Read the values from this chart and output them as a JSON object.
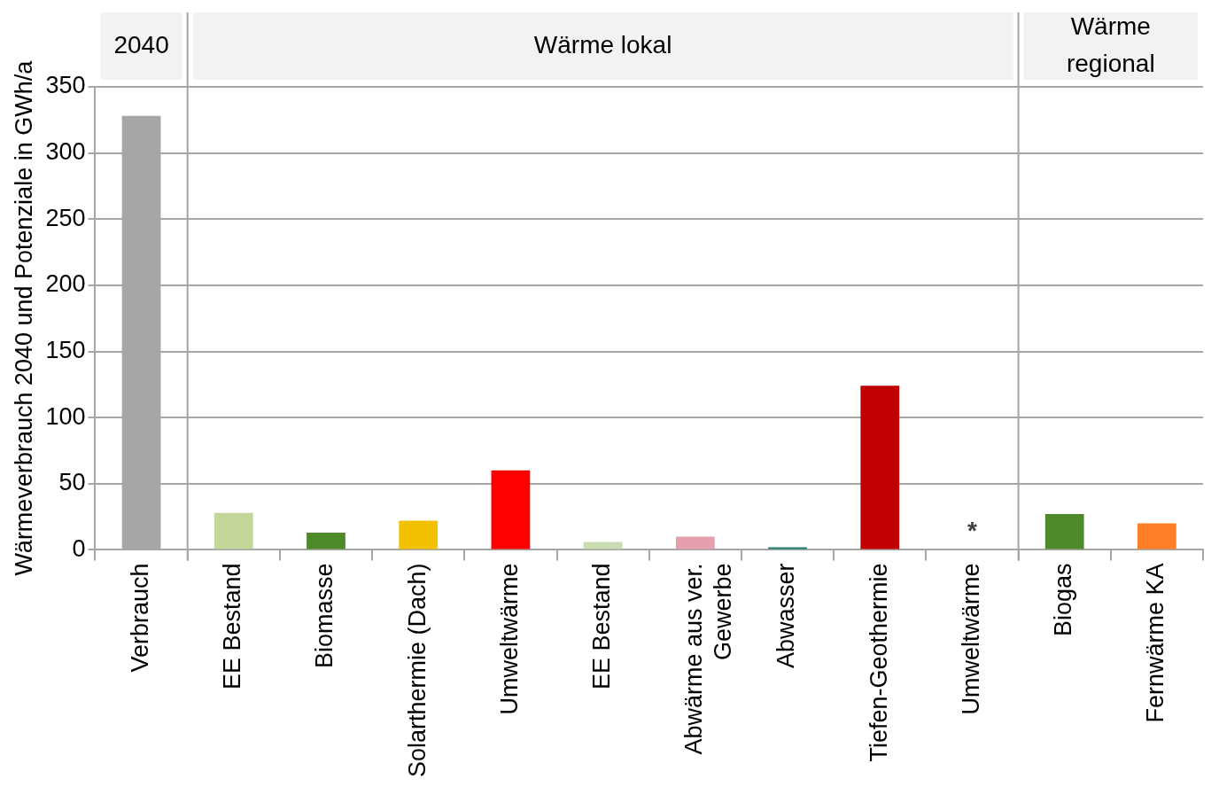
{
  "chart_data": {
    "type": "bar",
    "ylabel": "Wärmeverbrauch 2040 und Potenziale in GWh/a",
    "categories": [
      "Verbrauch",
      "EE Bestand",
      "Biomasse",
      "Solarthermie (Dach)",
      "Umweltwärme",
      "EE Bestand",
      "Abwärme aus ver. Gewerbe",
      "Abwasser",
      "Tiefen-Geothermie",
      "Umweltwärme",
      "Biogas",
      "Fernwärme KA"
    ],
    "values": [
      328,
      28,
      13,
      22,
      60,
      6,
      10,
      2,
      124,
      null,
      27,
      20
    ],
    "colors": [
      "#a6a6a6",
      "#c4d79b",
      "#4f8a2a",
      "#f2c200",
      "#ff0000",
      "#c9dbb0",
      "#e6a0ad",
      "#1f7f6f",
      "#c00000",
      "#ffffff",
      "#4f8a2a",
      "#ff7f27"
    ],
    "value_labels": [
      null,
      null,
      null,
      null,
      null,
      null,
      null,
      null,
      null,
      "*",
      null,
      null
    ],
    "annotations": [
      "2040",
      "Wärme lokal",
      "Wärme regional"
    ],
    "ylim": [
      0,
      350
    ],
    "yticks": [
      0,
      50,
      100,
      150,
      200,
      250,
      300,
      350
    ],
    "grid": "y",
    "legend": false
  }
}
